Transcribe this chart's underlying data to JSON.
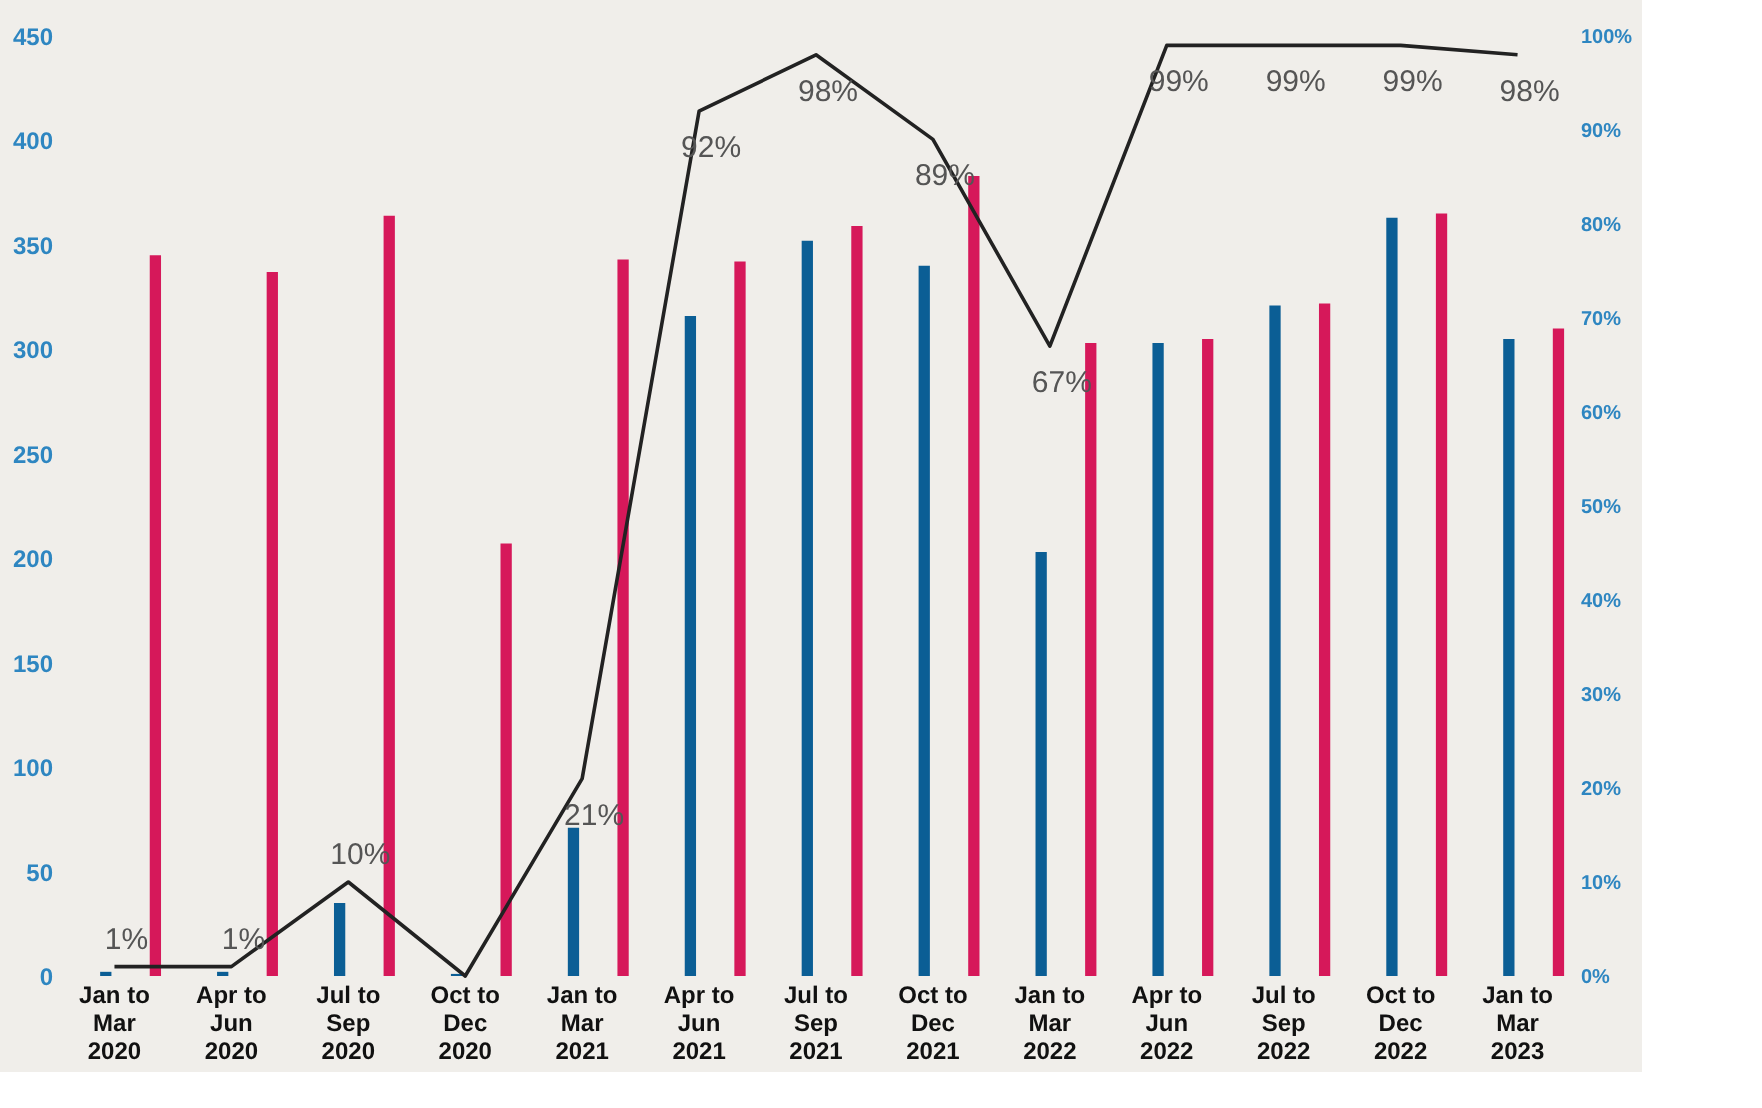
{
  "chart_data": {
    "type": "bar",
    "categories": [
      "Jan to\nMar\n2020",
      "Apr to\nJun\n2020",
      "Jul to\nSep\n2020",
      "Oct to\nDec\n2020",
      "Jan to\nMar\n2021",
      "Apr to\nJun\n2021",
      "Jul to\nSep\n2021",
      "Oct to\nDec\n2021",
      "Jan to\nMar\n2022",
      "Apr to\nJun\n2022",
      "Jul to\nSep\n2022",
      "Oct to\nDec\n2022",
      "Jan to\nMar\n2023"
    ],
    "series": [
      {
        "color": "#0b5e95",
        "values": [
          2,
          2,
          35,
          1,
          71,
          316,
          352,
          340,
          203,
          303,
          321,
          363,
          305
        ]
      },
      {
        "color": "#d6185a",
        "values": [
          345,
          337,
          364,
          207,
          343,
          342,
          359,
          383,
          303,
          305,
          322,
          365,
          310
        ]
      },
      {
        "type": "line",
        "axis": "y2",
        "color": "#222222",
        "values": [
          1,
          1,
          10,
          0,
          21,
          92,
          98,
          89,
          67,
          99,
          99,
          99,
          98
        ],
        "value_labels": [
          "1%",
          "1%",
          "10%",
          null,
          "21%",
          "92%",
          "98%",
          "89%",
          "67%",
          "99%",
          "99%",
          "99%",
          "98%"
        ]
      }
    ],
    "ylim": [
      0,
      450
    ],
    "yticks": [
      0,
      50,
      100,
      150,
      200,
      250,
      300,
      350,
      400,
      450
    ],
    "y2lim": [
      0,
      100
    ],
    "y2ticks": [
      {
        "value": 0,
        "label": "0%"
      },
      {
        "value": 10,
        "label": "10%"
      },
      {
        "value": 20,
        "label": "20%"
      },
      {
        "value": 30,
        "label": "30%"
      },
      {
        "value": 40,
        "label": "40%"
      },
      {
        "value": 50,
        "label": "50%"
      },
      {
        "value": 60,
        "label": "60%"
      },
      {
        "value": 70,
        "label": "70%"
      },
      {
        "value": 80,
        "label": "80%"
      },
      {
        "value": 90,
        "label": "90%"
      },
      {
        "value": 100,
        "label": "100%"
      }
    ],
    "grid": false,
    "legend": false,
    "line_style": "solid",
    "marker": "none"
  }
}
